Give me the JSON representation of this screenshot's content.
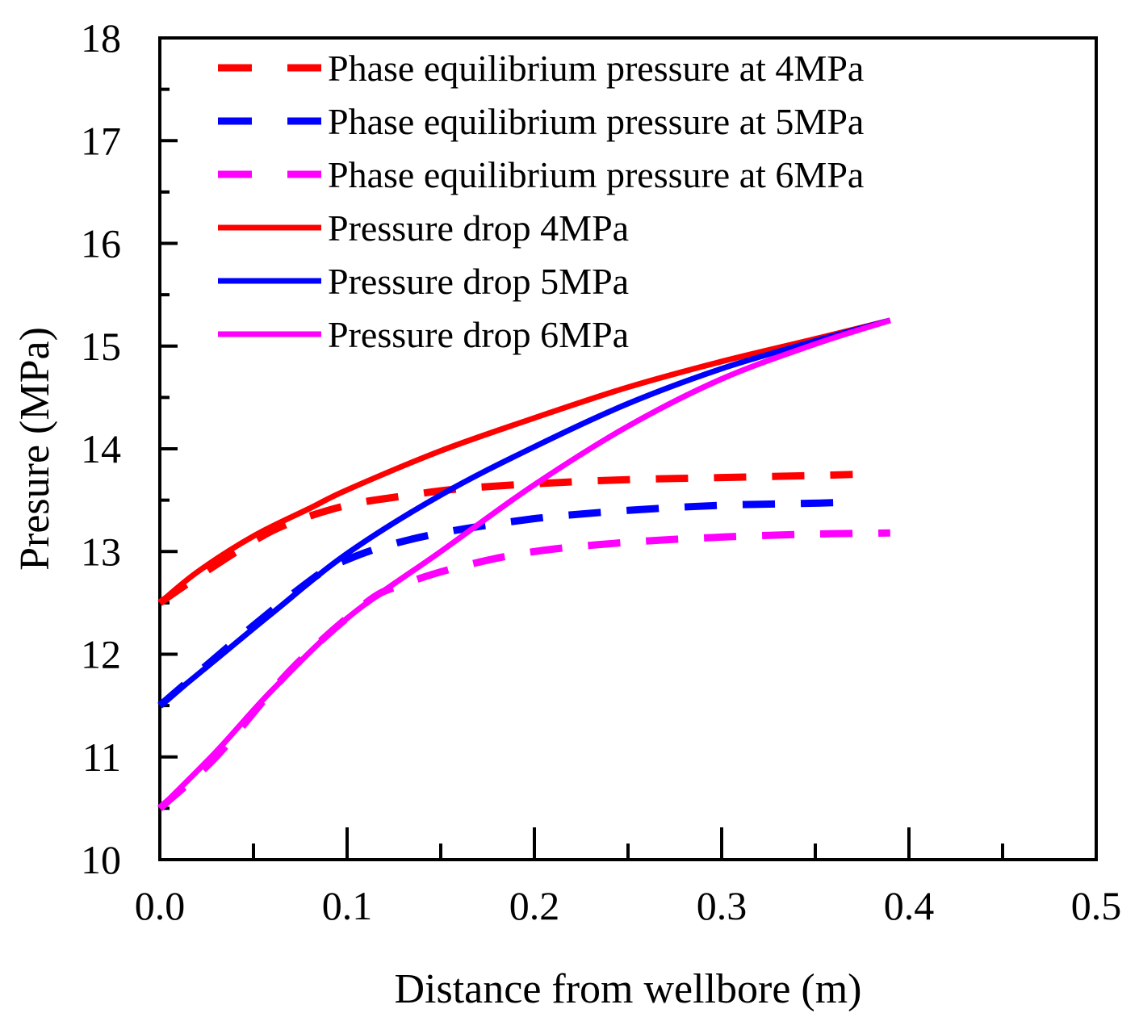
{
  "chart_data": {
    "type": "line",
    "title": "",
    "xlabel": "Distance from wellbore (m)",
    "ylabel": "Presure (MPa)",
    "xlim": [
      0.0,
      0.5
    ],
    "ylim": [
      10,
      18
    ],
    "x_ticks": [
      "0.0",
      "0.1",
      "0.2",
      "0.3",
      "0.4",
      "0.5"
    ],
    "y_ticks": [
      "10",
      "11",
      "12",
      "13",
      "14",
      "15",
      "16",
      "17",
      "18"
    ],
    "grid": false,
    "legend_position": "top-left",
    "series": [
      {
        "name": "Phase equilibrium pressure at 4MPa",
        "style": "dashed",
        "color": "#ff0000",
        "x": [
          0.0,
          0.02,
          0.05,
          0.07,
          0.1,
          0.13,
          0.16,
          0.2,
          0.25,
          0.3,
          0.35,
          0.37
        ],
        "y": [
          12.5,
          12.75,
          13.1,
          13.28,
          13.45,
          13.54,
          13.61,
          13.66,
          13.7,
          13.72,
          13.74,
          13.75
        ]
      },
      {
        "name": "Phase equilibrium pressure at 5MPa",
        "style": "dashed",
        "color": "#0000ff",
        "x": [
          0.0,
          0.05,
          0.085,
          0.1,
          0.12,
          0.15,
          0.2,
          0.25,
          0.3,
          0.35,
          0.365
        ],
        "y": [
          11.5,
          12.28,
          12.78,
          12.92,
          13.05,
          13.18,
          13.32,
          13.4,
          13.45,
          13.47,
          13.48
        ]
      },
      {
        "name": "Phase equilibrium pressure at 6MPa",
        "style": "dashed",
        "color": "#ff00ff",
        "x": [
          0.0,
          0.03,
          0.07,
          0.11,
          0.13,
          0.16,
          0.2,
          0.25,
          0.3,
          0.35,
          0.39
        ],
        "y": [
          10.5,
          11.0,
          11.85,
          12.5,
          12.68,
          12.85,
          13.0,
          13.09,
          13.14,
          13.17,
          13.18
        ]
      },
      {
        "name": "Pressure drop 4MPa",
        "style": "solid",
        "color": "#ff0000",
        "x": [
          0.0,
          0.02,
          0.05,
          0.08,
          0.1,
          0.15,
          0.2,
          0.25,
          0.3,
          0.35,
          0.39
        ],
        "y": [
          12.5,
          12.8,
          13.15,
          13.42,
          13.6,
          13.98,
          14.3,
          14.6,
          14.85,
          15.07,
          15.25
        ]
      },
      {
        "name": "Pressure drop 5MPa",
        "style": "solid",
        "color": "#0000ff",
        "x": [
          0.0,
          0.03,
          0.06,
          0.1,
          0.15,
          0.2,
          0.25,
          0.3,
          0.35,
          0.39
        ],
        "y": [
          11.5,
          11.95,
          12.4,
          12.98,
          13.55,
          14.02,
          14.44,
          14.78,
          15.05,
          15.25
        ]
      },
      {
        "name": "Pressure drop 6MPa",
        "style": "solid",
        "color": "#ff00ff",
        "x": [
          0.0,
          0.03,
          0.06,
          0.1,
          0.15,
          0.2,
          0.25,
          0.3,
          0.35,
          0.39
        ],
        "y": [
          10.5,
          11.05,
          11.65,
          12.35,
          13.0,
          13.65,
          14.22,
          14.68,
          15.02,
          15.25
        ]
      }
    ]
  }
}
